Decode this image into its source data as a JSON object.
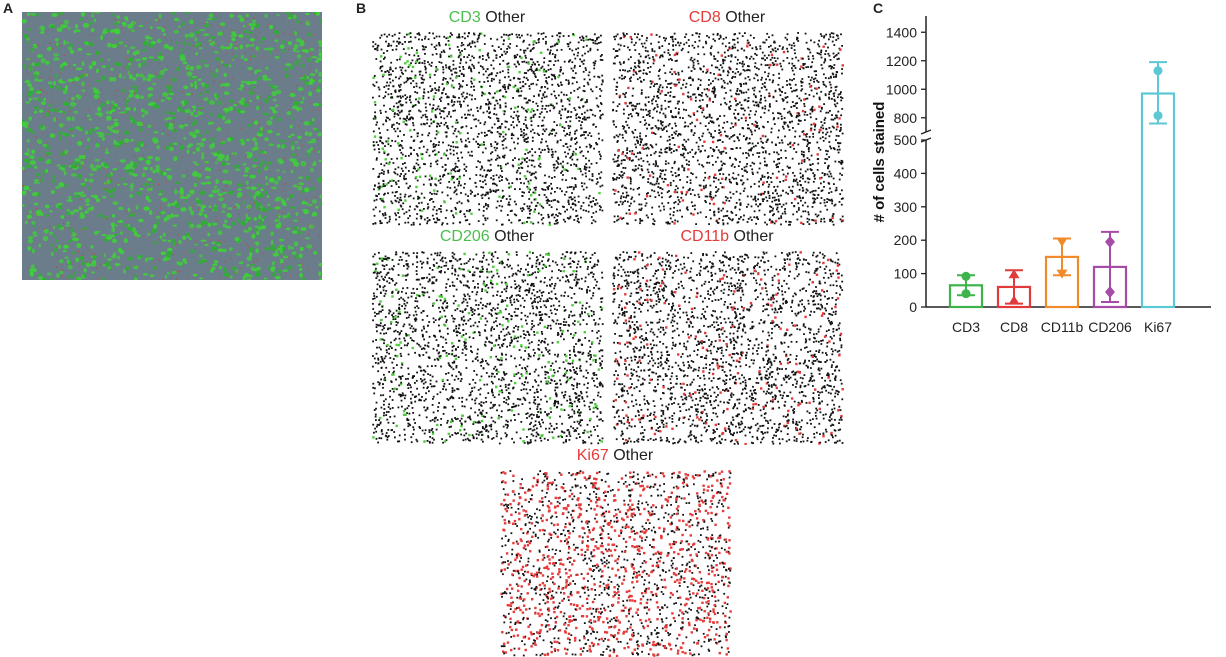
{
  "panels": {
    "a": {
      "letter": "A"
    },
    "b": {
      "letter": "B"
    },
    "c": {
      "letter": "C"
    }
  },
  "scatter_panels": [
    {
      "marker": "CD3",
      "marker_color": "#4bbf4b",
      "other": "Other",
      "dot_color": "#4ccf3a",
      "frac": 0.06
    },
    {
      "marker": "CD8",
      "marker_color": "#e53b3b",
      "other": "Other",
      "dot_color": "#e53b3b",
      "frac": 0.05
    },
    {
      "marker": "CD206",
      "marker_color": "#4bbf4b",
      "other": "Other",
      "dot_color": "#4ccf3a",
      "frac": 0.07
    },
    {
      "marker": "CD11b",
      "marker_color": "#e53b3b",
      "other": "Other",
      "dot_color": "#e53b3b",
      "frac": 0.08
    },
    {
      "marker": "Ki67",
      "marker_color": "#e53b3b",
      "other": "Other",
      "dot_color": "#e53b3b",
      "frac": 0.45
    }
  ],
  "chart_data": {
    "type": "bar",
    "ylabel": "# of cells stained",
    "categories": [
      "CD3",
      "CD8",
      "CD11b",
      "CD206",
      "Ki67"
    ],
    "colors": [
      "#3cb44b",
      "#e03a3a",
      "#f08a2a",
      "#a64ca6",
      "#5bc8d4"
    ],
    "markers": [
      "circle",
      "triangle",
      "triangle-down",
      "diamond",
      "circle"
    ],
    "values": [
      65,
      60,
      150,
      120,
      970
    ],
    "error_low": [
      35,
      10,
      95,
      15,
      760
    ],
    "error_high": [
      95,
      110,
      205,
      225,
      1190
    ],
    "points": [
      [
        92,
        40
      ],
      [
        98,
        20
      ],
      [
        195,
        100
      ],
      [
        195,
        45
      ],
      [
        1130,
        815
      ]
    ],
    "y_axis": {
      "lower_range": [
        0,
        500
      ],
      "lower_ticks": [
        0,
        100,
        200,
        300,
        400,
        500
      ],
      "upper_range": [
        700,
        1500
      ],
      "upper_ticks": [
        800,
        1000,
        1200,
        1400
      ],
      "break": true
    },
    "grid": false
  }
}
